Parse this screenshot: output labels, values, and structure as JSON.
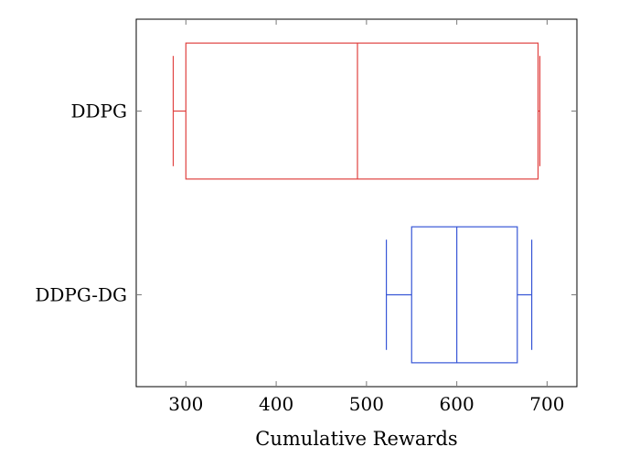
{
  "chart_data": {
    "type": "boxplot",
    "orientation": "horizontal",
    "title": "",
    "xlabel": "Cumulative Rewards",
    "ylabel": "",
    "xlim": [
      245,
      733
    ],
    "x_ticks": [
      300,
      400,
      500,
      600,
      700
    ],
    "x_tick_labels": [
      "300",
      "400",
      "500",
      "600",
      "700"
    ],
    "grid": false,
    "categories": [
      "DDPG",
      "DDPG-DG"
    ],
    "series": [
      {
        "name": "DDPG",
        "color": "#e0413f",
        "whisker_low": 286,
        "q1": 300,
        "median": 490,
        "q3": 690,
        "whisker_high": 692
      },
      {
        "name": "DDPG-DG",
        "color": "#3756d6",
        "whisker_low": 522,
        "q1": 550,
        "median": 600,
        "q3": 667,
        "whisker_high": 683
      }
    ]
  }
}
